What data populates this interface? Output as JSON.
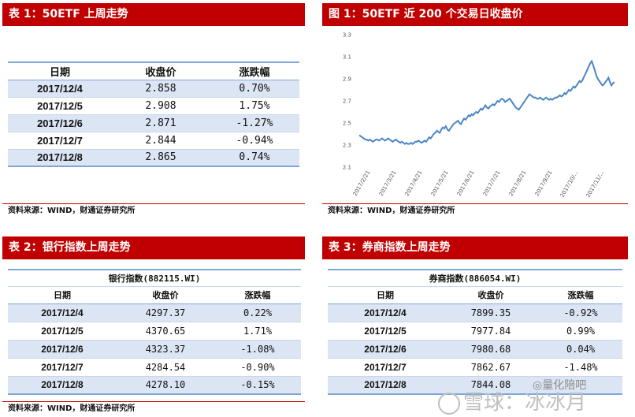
{
  "panel1": {
    "header": "表 1：50ETF 上周走势",
    "columns": [
      "日期",
      "收盘价",
      "涨跌幅"
    ],
    "rows": [
      {
        "date": "2017/12/4",
        "close": "2.858",
        "change": "0.70%"
      },
      {
        "date": "2017/12/5",
        "close": "2.908",
        "change": "1.75%"
      },
      {
        "date": "2017/12/6",
        "close": "2.871",
        "change": "-1.27%"
      },
      {
        "date": "2017/12/7",
        "close": "2.844",
        "change": "-0.94%"
      },
      {
        "date": "2017/12/8",
        "close": "2.865",
        "change": "0.74%"
      }
    ],
    "source": "资料来源：WIND，财通证券研究所"
  },
  "panel2": {
    "header": "图 1：50ETF 近 200 个交易日收盘价",
    "source": "资料来源：WIND，财通证券研究所"
  },
  "chart_data": {
    "type": "line",
    "title": "",
    "xlabel": "",
    "ylabel": "",
    "ylim": [
      2.1,
      3.3
    ],
    "yticks": [
      "3.3",
      "3.1",
      "2.9",
      "2.7",
      "2.5",
      "2.3",
      "2.1"
    ],
    "xticks": [
      "2017/2/21",
      "2017/3/21",
      "2017/4/21",
      "2017/5/21",
      "2017/6/21",
      "2017/7/21",
      "2017/8/21",
      "2017/9/21",
      "2017/10/...",
      "2017/11/..."
    ],
    "grid": false,
    "color": "#4a86c4",
    "series": [
      {
        "values": [
          2.39,
          2.38,
          2.37,
          2.36,
          2.35,
          2.35,
          2.34,
          2.35,
          2.34,
          2.33,
          2.34,
          2.35,
          2.35,
          2.34,
          2.35,
          2.36,
          2.35,
          2.34,
          2.35,
          2.36,
          2.35,
          2.34,
          2.33,
          2.34,
          2.35,
          2.34,
          2.33,
          2.32,
          2.33,
          2.32,
          2.31,
          2.32,
          2.31,
          2.31,
          2.32,
          2.31,
          2.32,
          2.33,
          2.33,
          2.34,
          2.33,
          2.32,
          2.33,
          2.34,
          2.33,
          2.35,
          2.37,
          2.36,
          2.38,
          2.4,
          2.41,
          2.43,
          2.42,
          2.41,
          2.44,
          2.46,
          2.45,
          2.47,
          2.44,
          2.43,
          2.45,
          2.47,
          2.49,
          2.5,
          2.51,
          2.52,
          2.5,
          2.49,
          2.52,
          2.54,
          2.53,
          2.55,
          2.57,
          2.56,
          2.58,
          2.57,
          2.59,
          2.6,
          2.59,
          2.61,
          2.63,
          2.62,
          2.64,
          2.66,
          2.64,
          2.63,
          2.65,
          2.66,
          2.67,
          2.66,
          2.68,
          2.7,
          2.69,
          2.71,
          2.72,
          2.71,
          2.69,
          2.7,
          2.71,
          2.72,
          2.7,
          2.68,
          2.66,
          2.64,
          2.63,
          2.62,
          2.64,
          2.66,
          2.68,
          2.7,
          2.72,
          2.74,
          2.76,
          2.75,
          2.74,
          2.73,
          2.73,
          2.72,
          2.72,
          2.73,
          2.72,
          2.71,
          2.72,
          2.73,
          2.72,
          2.71,
          2.72,
          2.71,
          2.72,
          2.73,
          2.73,
          2.74,
          2.75,
          2.74,
          2.75,
          2.77,
          2.76,
          2.78,
          2.8,
          2.79,
          2.81,
          2.83,
          2.82,
          2.84,
          2.86,
          2.88,
          2.87,
          2.89,
          2.92,
          2.95,
          2.98,
          3.01,
          3.04,
          3.06,
          3.02,
          2.98,
          2.93,
          2.9,
          2.88,
          2.86,
          2.84,
          2.85,
          2.87,
          2.89,
          2.91,
          2.87,
          2.84,
          2.86,
          2.87
        ]
      }
    ]
  },
  "panel3": {
    "header": "表 2：银行指数上周走势",
    "table_title": "银行指数(882115.WI)",
    "columns": [
      "日期",
      "收盘价",
      "涨跌幅"
    ],
    "rows": [
      {
        "date": "2017/12/4",
        "close": "4297.37",
        "change": "0.22%"
      },
      {
        "date": "2017/12/5",
        "close": "4370.65",
        "change": "1.71%"
      },
      {
        "date": "2017/12/6",
        "close": "4323.37",
        "change": "-1.08%"
      },
      {
        "date": "2017/12/7",
        "close": "4284.54",
        "change": "-0.90%"
      },
      {
        "date": "2017/12/8",
        "close": "4278.10",
        "change": "-0.15%"
      }
    ],
    "source": "资料来源：WIND，财通证券研究所"
  },
  "panel4": {
    "header": "表 3：券商指数上周走势",
    "table_title": "券商指数(886054.WI)",
    "columns": [
      "日期",
      "收盘价",
      "涨跌幅"
    ],
    "rows": [
      {
        "date": "2017/12/4",
        "close": "7899.35",
        "change": "-0.92%"
      },
      {
        "date": "2017/12/5",
        "close": "7977.84",
        "change": "0.99%"
      },
      {
        "date": "2017/12/6",
        "close": "7980.68",
        "change": "0.04%"
      },
      {
        "date": "2017/12/7",
        "close": "7862.67",
        "change": "-1.48%"
      },
      {
        "date": "2017/12/8",
        "close": "7844.08",
        "change": ""
      }
    ]
  },
  "watermark": {
    "text1": "雪球：冰冰月",
    "text2": "量化陪吧"
  }
}
